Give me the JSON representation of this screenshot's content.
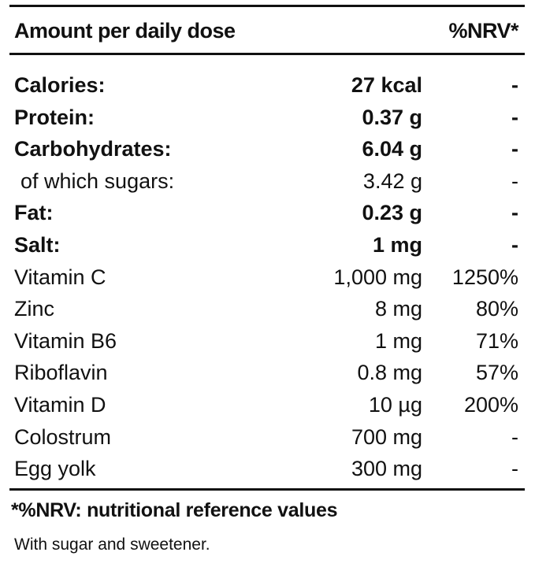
{
  "header": {
    "label": "Amount per daily dose",
    "nrv": "%NRV*"
  },
  "rows": [
    {
      "name": "Calories:",
      "amount": "27 kcal",
      "nrv": "-",
      "bold": true,
      "indent": false
    },
    {
      "name": "Protein:",
      "amount": "0.37 g",
      "nrv": "-",
      "bold": true,
      "indent": false
    },
    {
      "name": "Carbohydrates:",
      "amount": "6.04 g",
      "nrv": "-",
      "bold": true,
      "indent": false
    },
    {
      "name": "of which sugars:",
      "amount": "3.42 g",
      "nrv": "-",
      "bold": false,
      "indent": true
    },
    {
      "name": "Fat:",
      "amount": "0.23 g",
      "nrv": "-",
      "bold": true,
      "indent": false
    },
    {
      "name": "Salt:",
      "amount": "1 mg",
      "nrv": "-",
      "bold": true,
      "indent": false
    },
    {
      "name": "Vitamin C",
      "amount": "1,000 mg",
      "nrv": "1250%",
      "bold": false,
      "indent": false
    },
    {
      "name": "Zinc",
      "amount": "8 mg",
      "nrv": "80%",
      "bold": false,
      "indent": false
    },
    {
      "name": "Vitamin B6",
      "amount": "1 mg",
      "nrv": "71%",
      "bold": false,
      "indent": false
    },
    {
      "name": "Riboflavin",
      "amount": "0.8 mg",
      "nrv": "57%",
      "bold": false,
      "indent": false
    },
    {
      "name": "Vitamin D",
      "amount": "10 µg",
      "nrv": "200%",
      "bold": false,
      "indent": false
    },
    {
      "name": "Colostrum",
      "amount": "700 mg",
      "nrv": "-",
      "bold": false,
      "indent": false
    },
    {
      "name": "Egg yolk",
      "amount": "300 mg",
      "nrv": "-",
      "bold": false,
      "indent": false
    }
  ],
  "footnote": "*%NRV: nutritional reference values",
  "note": "With sugar and sweetener."
}
